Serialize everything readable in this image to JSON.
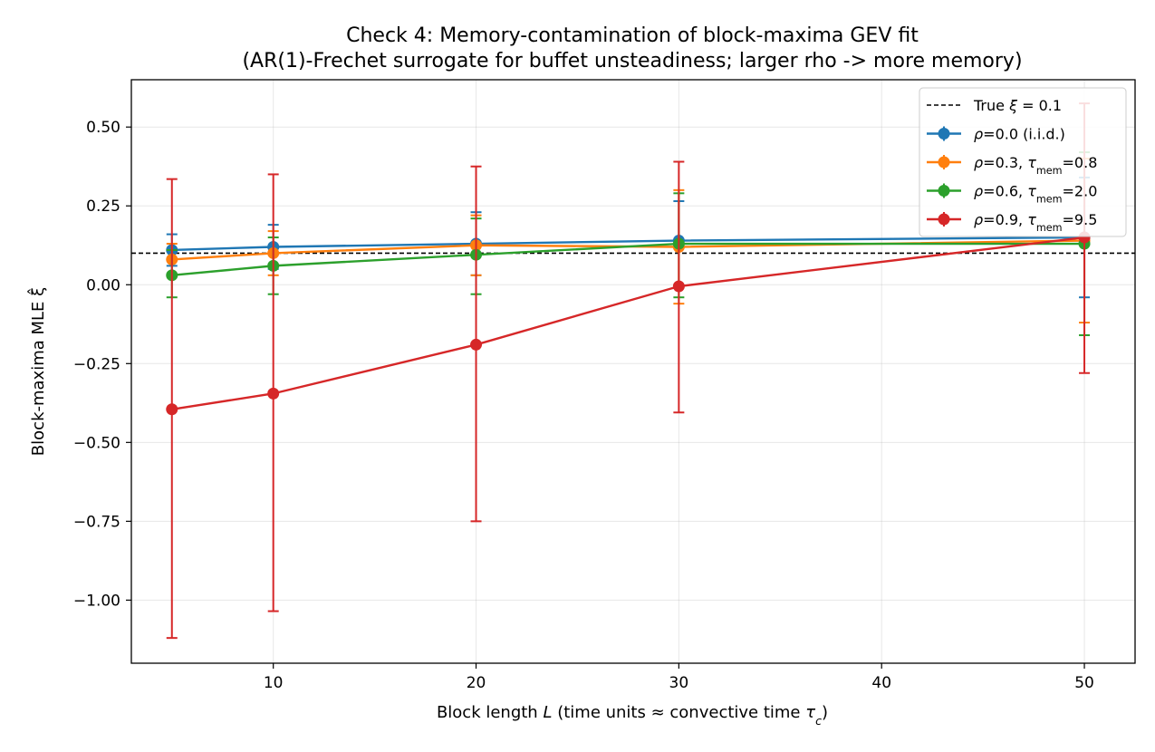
{
  "chart_data": {
    "type": "line",
    "title": "Check 4: Memory-contamination of block-maxima GEV fit",
    "subtitle": "(AR(1)-Frechet surrogate for buffet unsteadiness; larger rho -> more memory)",
    "xlabel_parts": [
      {
        "text": "Block length ",
        "italic": false
      },
      {
        "text": "L",
        "italic": true
      },
      {
        "text": " (time units ≈ convective time ",
        "italic": false
      },
      {
        "text": "τ",
        "italic": true
      },
      {
        "text": "c",
        "italic": true,
        "sub": true
      },
      {
        "text": ")",
        "italic": false
      }
    ],
    "ylabel": "Block-maxima MLE ξ̂",
    "xlim": [
      3,
      52.5
    ],
    "ylim": [
      -1.2,
      0.65
    ],
    "xticks": [
      10,
      20,
      30,
      40,
      50
    ],
    "xtick_labels": [
      "10",
      "20",
      "30",
      "40",
      "50"
    ],
    "yticks": [
      0.5,
      0.25,
      0.0,
      -0.25,
      -0.5,
      -0.75,
      -1.0
    ],
    "ytick_labels": [
      "0.50",
      "0.25",
      "0.00",
      "−0.25",
      "−0.50",
      "−0.75",
      "−1.00"
    ],
    "grid": true,
    "legend_position": "top-right",
    "x": [
      5,
      10,
      20,
      30,
      50
    ],
    "reference_line": {
      "value": 0.1,
      "label_parts": [
        {
          "text": "True ",
          "italic": false
        },
        {
          "text": "ξ",
          "italic": true
        },
        {
          "text": " = 0.1",
          "italic": false
        }
      ],
      "color": "#000000"
    },
    "series": [
      {
        "color": "#1f77b4",
        "label_parts": [
          {
            "text": "ρ",
            "italic": true
          },
          {
            "text": "=0.0 (i.i.d.)",
            "italic": false
          }
        ],
        "values": [
          0.11,
          0.12,
          0.13,
          0.14,
          0.15
        ],
        "err_low": [
          0.06,
          0.05,
          0.03,
          0.13,
          -0.04
        ],
        "err_high": [
          0.16,
          0.19,
          0.23,
          0.265,
          0.34
        ]
      },
      {
        "color": "#ff7f0e",
        "label_parts": [
          {
            "text": "ρ",
            "italic": true
          },
          {
            "text": "=0.3, ",
            "italic": false
          },
          {
            "text": "τ",
            "italic": true
          },
          {
            "text": "mem",
            "italic": false,
            "sub": true
          },
          {
            "text": "=0.8",
            "italic": false
          }
        ],
        "values": [
          0.08,
          0.1,
          0.125,
          0.12,
          0.14
        ],
        "err_low": [
          0.03,
          0.03,
          0.03,
          -0.06,
          -0.12
        ],
        "err_high": [
          0.13,
          0.17,
          0.22,
          0.3,
          0.4
        ]
      },
      {
        "color": "#2ca02c",
        "label_parts": [
          {
            "text": "ρ",
            "italic": true
          },
          {
            "text": "=0.6, ",
            "italic": false
          },
          {
            "text": "τ",
            "italic": true
          },
          {
            "text": "mem",
            "italic": false,
            "sub": true
          },
          {
            "text": "=2.0",
            "italic": false
          }
        ],
        "values": [
          0.03,
          0.06,
          0.095,
          0.13,
          0.13
        ],
        "err_low": [
          -0.04,
          -0.03,
          -0.03,
          -0.04,
          -0.16
        ],
        "err_high": [
          0.11,
          0.15,
          0.21,
          0.29,
          0.42
        ]
      },
      {
        "color": "#d62728",
        "label_parts": [
          {
            "text": "ρ",
            "italic": true
          },
          {
            "text": "=0.9, ",
            "italic": false
          },
          {
            "text": "τ",
            "italic": true
          },
          {
            "text": "mem",
            "italic": false,
            "sub": true
          },
          {
            "text": "=9.5",
            "italic": false
          }
        ],
        "values": [
          -0.395,
          -0.345,
          -0.19,
          -0.005,
          0.15
        ],
        "err_low": [
          -1.12,
          -1.035,
          -0.75,
          -0.405,
          -0.28
        ],
        "err_high": [
          0.335,
          0.35,
          0.375,
          0.39,
          0.575
        ]
      }
    ]
  }
}
